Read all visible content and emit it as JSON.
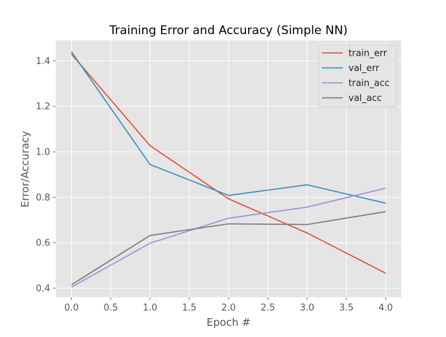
{
  "chart_data": {
    "type": "line",
    "title": "Training Error and Accuracy (Simple NN)",
    "xlabel": "Epoch #",
    "ylabel": "Error/Accuracy",
    "x": [
      0,
      1,
      2,
      3,
      4
    ],
    "xlim": [
      -0.2,
      4.2
    ],
    "ylim": [
      0.36,
      1.49
    ],
    "xticks": [
      "0.0",
      "0.5",
      "1.0",
      "1.5",
      "2.0",
      "2.5",
      "3.0",
      "3.5",
      "4.0"
    ],
    "yticks": [
      "0.4",
      "0.6",
      "0.8",
      "1.0",
      "1.2",
      "1.4"
    ],
    "grid": true,
    "legend_position": "top-right",
    "series": [
      {
        "name": "train_err",
        "color": "#e24a33",
        "values": [
          1.43,
          1.027,
          0.793,
          0.643,
          0.466
        ]
      },
      {
        "name": "val_err",
        "color": "#348abd",
        "values": [
          1.44,
          0.944,
          0.808,
          0.855,
          0.774
        ]
      },
      {
        "name": "train_acc",
        "color": "#988ed5",
        "values": [
          0.405,
          0.598,
          0.708,
          0.757,
          0.84
        ]
      },
      {
        "name": "val_acc",
        "color": "#777777",
        "values": [
          0.415,
          0.632,
          0.683,
          0.68,
          0.737
        ]
      }
    ]
  }
}
